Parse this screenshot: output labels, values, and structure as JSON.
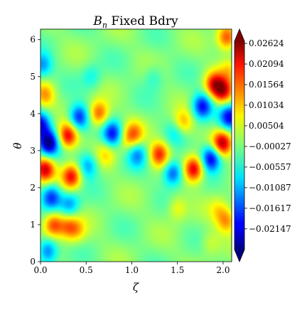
{
  "chart_data": {
    "type": "heatmap",
    "title_main": "B",
    "title_sub": "n",
    "title_rest": " Fixed Bdry",
    "xlabel": "ζ",
    "ylabel": "θ",
    "xlim": [
      0,
      2.094
    ],
    "ylim": [
      0,
      6.283
    ],
    "x_ticks": [
      0.0,
      0.5,
      1.0,
      1.5,
      2.0
    ],
    "x_tick_labels": [
      "0.0",
      "0.5",
      "1.0",
      "1.5",
      "2.0"
    ],
    "y_ticks": [
      0,
      1,
      2,
      3,
      4,
      5,
      6
    ],
    "y_tick_labels": [
      "0",
      "1",
      "2",
      "3",
      "4",
      "5",
      "6"
    ],
    "colormap": "jet",
    "colorbar": {
      "vmin": -0.0268,
      "vmax": 0.0268,
      "extend": "both",
      "ticks": [
        0.02624,
        0.02094,
        0.01564,
        0.01034,
        0.00504,
        -0.00027,
        -0.00557,
        -0.01087,
        -0.01617,
        -0.02147
      ],
      "tick_labels": [
        "0.02624",
        "0.02094",
        "0.01564",
        "0.01034",
        "0.00504",
        "−0.00027",
        "−0.00557",
        "−0.01087",
        "−0.01617",
        "−0.02147"
      ]
    },
    "features": [
      {
        "x": 0.09,
        "y": 3.2,
        "value": -0.026
      },
      {
        "x": 0.05,
        "y": 2.5,
        "value": 0.022
      },
      {
        "x": 0.0,
        "y": 3.7,
        "value": -0.02
      },
      {
        "x": 0.3,
        "y": 3.4,
        "value": 0.021
      },
      {
        "x": 0.34,
        "y": 2.3,
        "value": 0.02
      },
      {
        "x": 0.12,
        "y": 1.75,
        "value": -0.018
      },
      {
        "x": 0.32,
        "y": 1.55,
        "value": -0.012
      },
      {
        "x": 0.14,
        "y": 1.0,
        "value": 0.017
      },
      {
        "x": 0.3,
        "y": 0.95,
        "value": 0.012
      },
      {
        "x": 0.08,
        "y": 0.3,
        "value": -0.015
      },
      {
        "x": 0.02,
        "y": 5.3,
        "value": -0.012
      },
      {
        "x": 0.05,
        "y": 4.5,
        "value": 0.012
      },
      {
        "x": 0.42,
        "y": 3.9,
        "value": -0.019
      },
      {
        "x": 0.52,
        "y": 2.6,
        "value": -0.012
      },
      {
        "x": 0.64,
        "y": 4.0,
        "value": 0.016
      },
      {
        "x": 0.79,
        "y": 3.45,
        "value": -0.019
      },
      {
        "x": 0.72,
        "y": 2.9,
        "value": 0.007
      },
      {
        "x": 0.93,
        "y": 3.25,
        "value": 0.005
      },
      {
        "x": 1.02,
        "y": 3.45,
        "value": 0.013
      },
      {
        "x": 1.06,
        "y": 2.9,
        "value": -0.012
      },
      {
        "x": 1.3,
        "y": 2.9,
        "value": 0.018
      },
      {
        "x": 1.45,
        "y": 2.4,
        "value": -0.017
      },
      {
        "x": 1.48,
        "y": 3.5,
        "value": -0.006
      },
      {
        "x": 1.56,
        "y": 3.75,
        "value": 0.011
      },
      {
        "x": 1.68,
        "y": 2.5,
        "value": 0.022
      },
      {
        "x": 1.77,
        "y": 4.2,
        "value": -0.02
      },
      {
        "x": 1.87,
        "y": 2.8,
        "value": -0.022
      },
      {
        "x": 1.99,
        "y": 3.2,
        "value": 0.023
      },
      {
        "x": 2.07,
        "y": 3.9,
        "value": -0.02
      },
      {
        "x": 1.9,
        "y": 4.8,
        "value": 0.018
      },
      {
        "x": 2.0,
        "y": 4.6,
        "value": 0.02
      },
      {
        "x": 2.04,
        "y": 6.05,
        "value": 0.017
      },
      {
        "x": 2.06,
        "y": 5.2,
        "value": 0.007
      },
      {
        "x": 2.04,
        "y": 1.1,
        "value": 0.012
      },
      {
        "x": 1.95,
        "y": 1.4,
        "value": 0.006
      },
      {
        "x": 1.5,
        "y": 1.45,
        "value": 0.007
      },
      {
        "x": 0.56,
        "y": 5.0,
        "value": -0.006
      },
      {
        "x": 1.24,
        "y": 5.0,
        "value": -0.005
      },
      {
        "x": 0.4,
        "y": 0.85,
        "value": 0.008
      },
      {
        "x": 1.86,
        "y": 0.5,
        "value": 0.005
      }
    ]
  }
}
